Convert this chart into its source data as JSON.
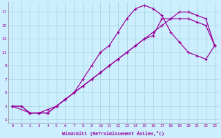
{
  "xlabel": "Windchill (Refroidissement éolien,°C)",
  "bg_color": "#cceeff",
  "line_color": "#990099",
  "xlim": [
    -0.5,
    23.5
  ],
  "ylim": [
    0.5,
    18.5
  ],
  "xticks": [
    0,
    1,
    2,
    3,
    4,
    5,
    6,
    7,
    8,
    9,
    10,
    11,
    12,
    13,
    14,
    15,
    16,
    17,
    18,
    19,
    20,
    21,
    22,
    23
  ],
  "yticks": [
    1,
    3,
    5,
    7,
    9,
    11,
    13,
    15,
    17
  ],
  "curve1_x": [
    0,
    1,
    2,
    3,
    4,
    5,
    6,
    7,
    8,
    9,
    10,
    11,
    12,
    13,
    14,
    15,
    16,
    17,
    18,
    19,
    20,
    21,
    22,
    23
  ],
  "curve1_y": [
    3,
    3,
    2,
    2,
    2,
    3,
    4,
    5,
    7,
    9,
    11,
    12,
    14,
    16,
    17.5,
    18,
    17.5,
    16.5,
    14,
    12.5,
    11,
    10.5,
    10,
    12
  ],
  "curve2_x": [
    0,
    1,
    2,
    3,
    4,
    5,
    6,
    7,
    8,
    9,
    10,
    11,
    12,
    13,
    14,
    15,
    16,
    17,
    18,
    19,
    20,
    21,
    22,
    23
  ],
  "curve2_y": [
    3,
    3,
    2,
    2,
    2.5,
    3,
    4,
    5,
    6,
    7,
    8,
    9,
    10,
    11,
    12,
    13,
    13.5,
    16,
    16,
    16,
    16,
    15.5,
    15,
    12
  ],
  "curve3_x": [
    0,
    2,
    3,
    4,
    5,
    6,
    7,
    8,
    9,
    10,
    11,
    12,
    13,
    14,
    15,
    16,
    17,
    18,
    19,
    20,
    21,
    22,
    23
  ],
  "curve3_y": [
    3,
    2,
    2,
    2,
    3,
    4,
    5,
    6,
    7,
    8,
    9,
    10,
    11,
    12,
    13,
    14,
    15,
    16,
    17,
    17,
    16.5,
    16,
    12
  ]
}
